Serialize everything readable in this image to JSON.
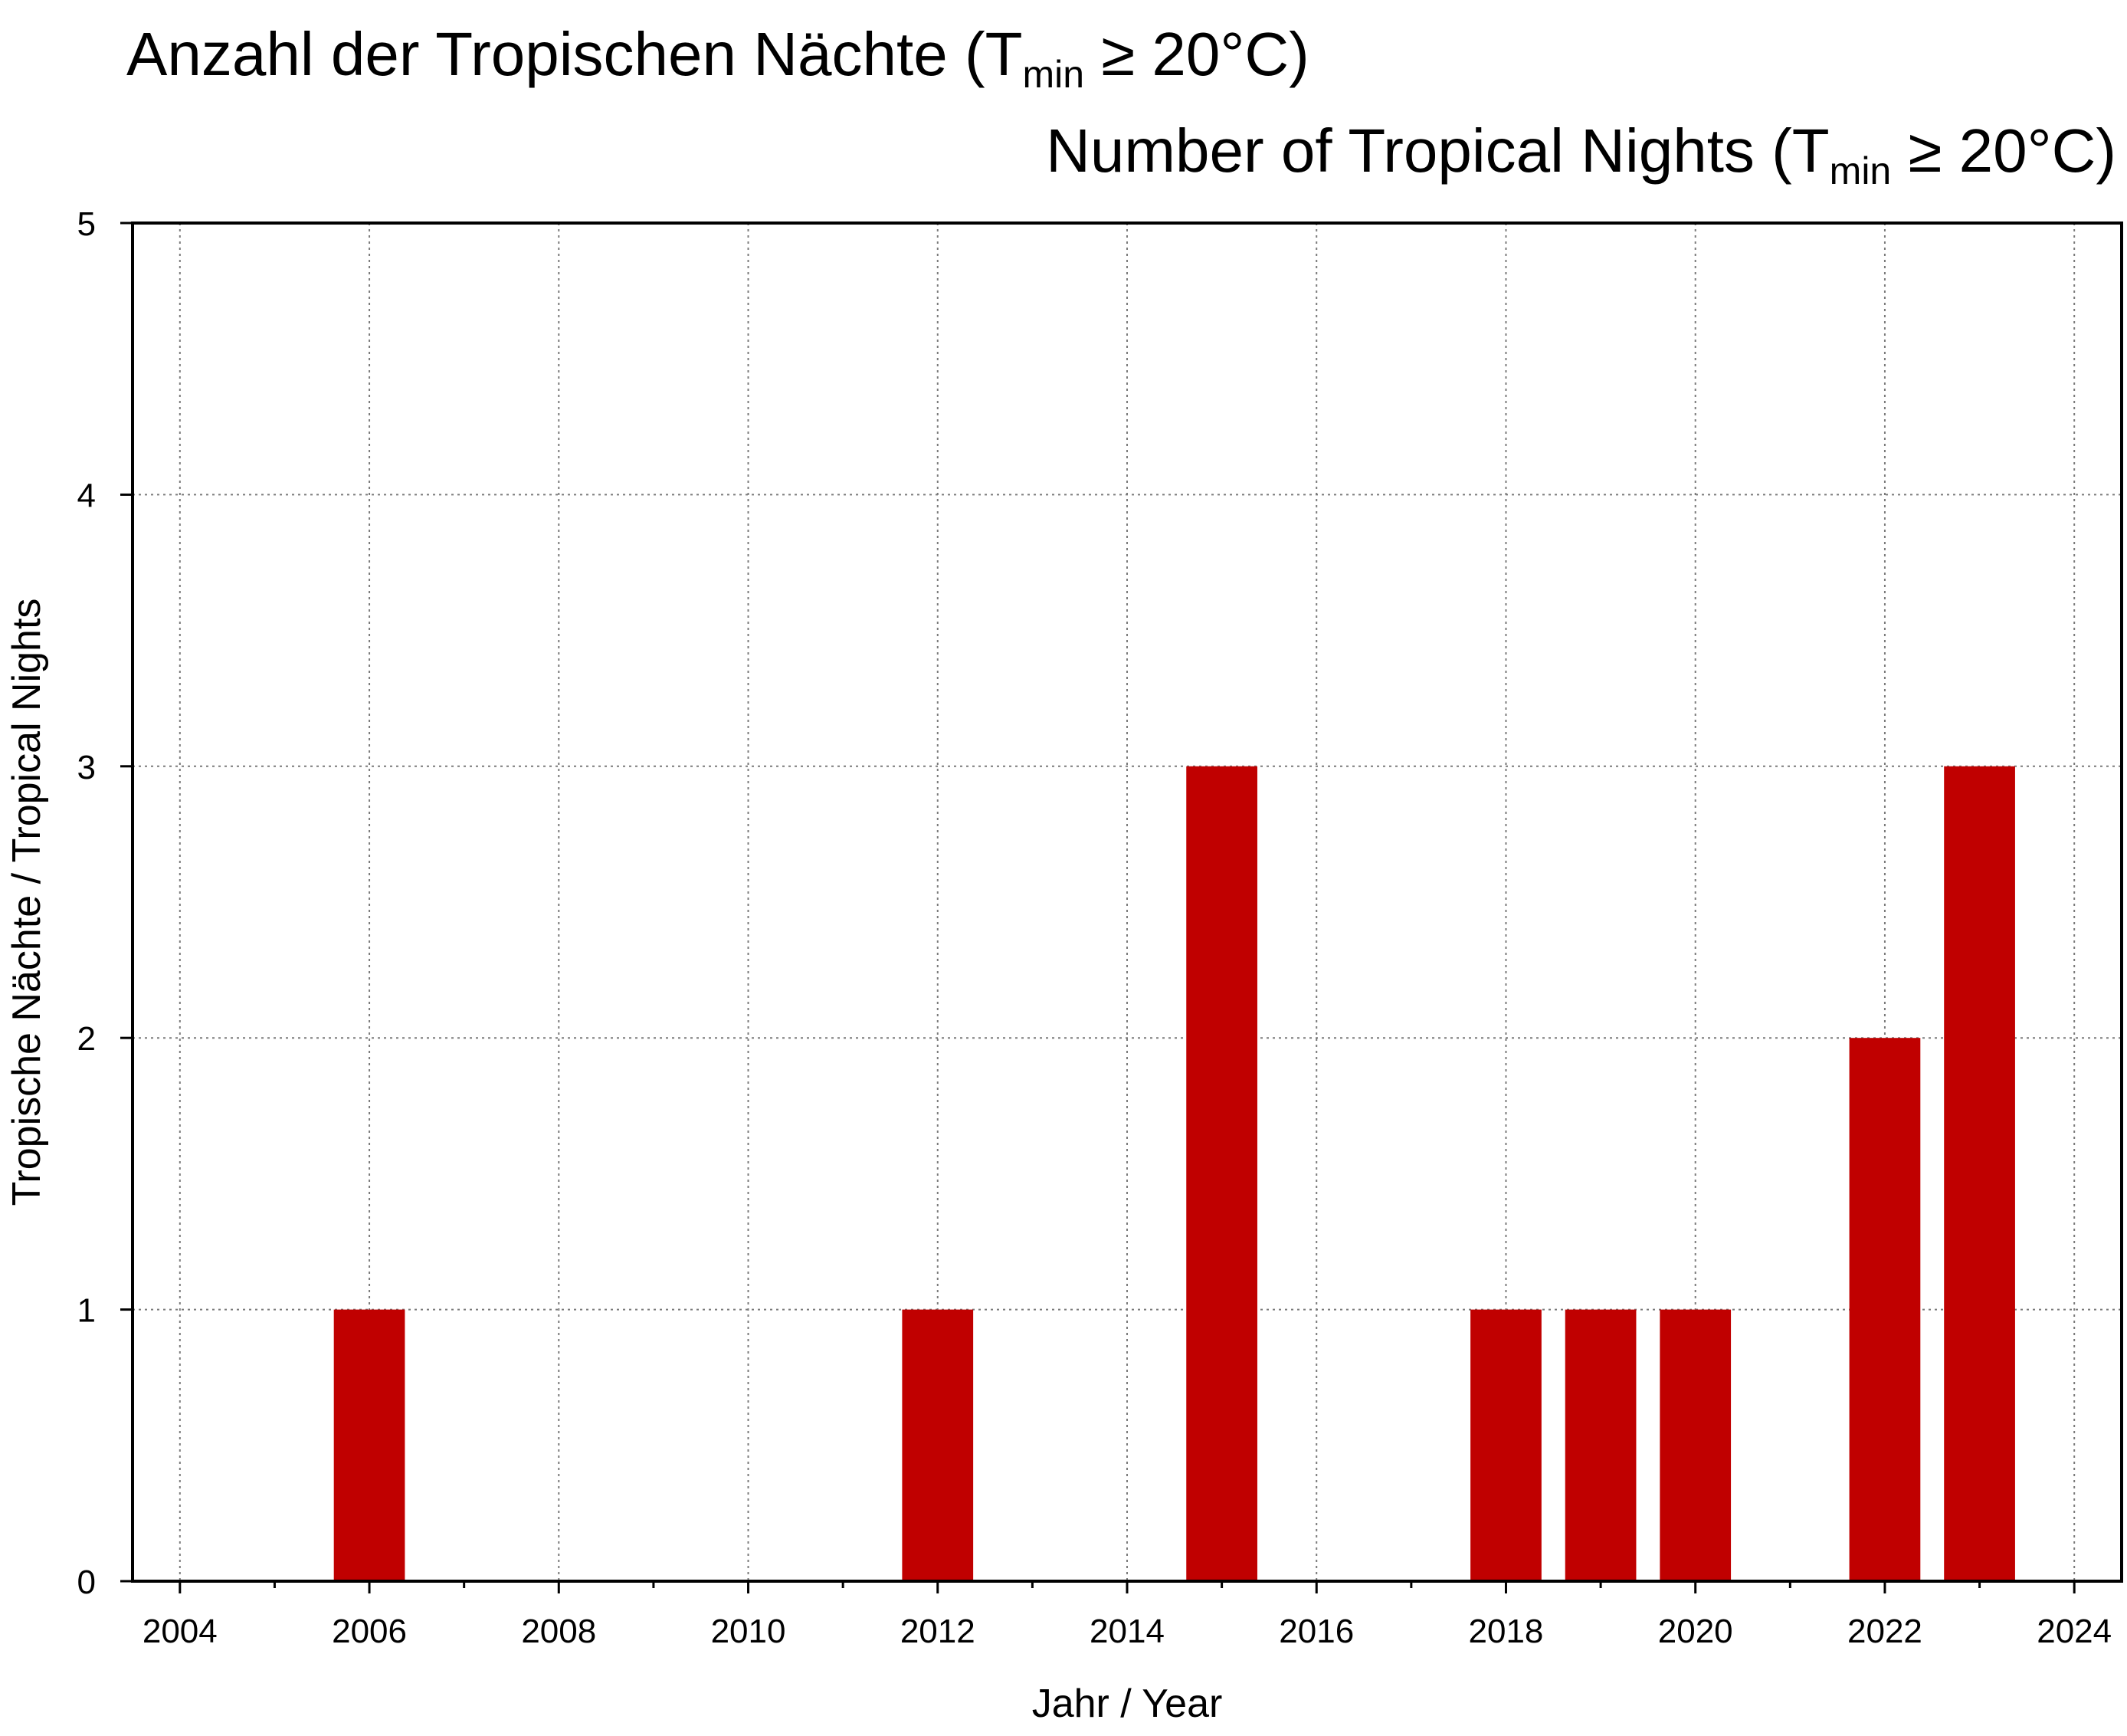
{
  "chart_data": {
    "type": "bar",
    "title_de": {
      "prefix": "Anzahl der Tropischen Nächte (T",
      "subscript": "min",
      "suffix": " ≥ 20°C)"
    },
    "title_en": {
      "prefix": "Number of Tropical Nights (T",
      "subscript": "min",
      "suffix": " ≥ 20°C)"
    },
    "xlabel": "Jahr / Year",
    "ylabel": "Tropische Nächte / Tropical Nights",
    "xlim": [
      2003.5,
      2024.5
    ],
    "ylim": [
      0,
      5
    ],
    "x_ticks": [
      2004,
      2006,
      2008,
      2010,
      2012,
      2014,
      2016,
      2018,
      2020,
      2022,
      2024
    ],
    "x_minor_ticks": [
      2005,
      2007,
      2009,
      2011,
      2013,
      2015,
      2017,
      2019,
      2021,
      2023
    ],
    "y_ticks": [
      0,
      1,
      2,
      3,
      4,
      5
    ],
    "grid": true,
    "bar_color": "#c00000",
    "bar_width_years": 0.75,
    "bars": [
      {
        "x": 2006,
        "y": 1
      },
      {
        "x": 2012,
        "y": 1
      },
      {
        "x": 2015,
        "y": 3
      },
      {
        "x": 2018,
        "y": 1
      },
      {
        "x": 2019,
        "y": 1
      },
      {
        "x": 2020,
        "y": 1
      },
      {
        "x": 2022,
        "y": 2
      },
      {
        "x": 2023,
        "y": 3
      }
    ]
  }
}
